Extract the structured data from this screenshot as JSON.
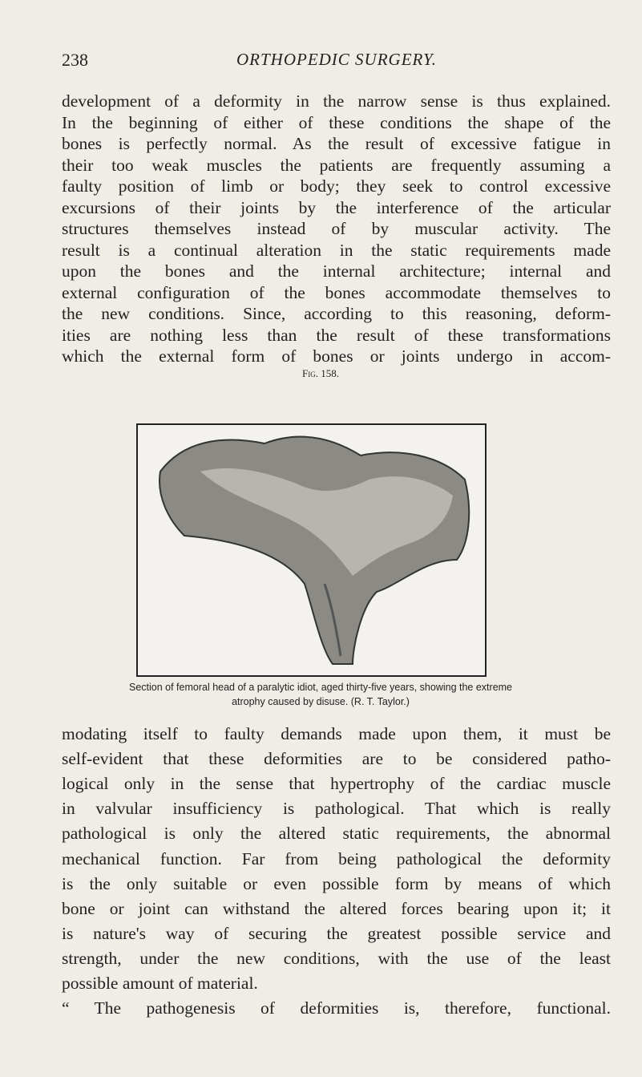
{
  "header": {
    "page_number": "238",
    "running_title": "ORTHOPEDIC SURGERY."
  },
  "paragraphs": [
    {
      "lines": [
        "development of a deformity in the narrow sense is thus explained.",
        "In the beginning of either of these conditions the shape of the",
        "bones is perfectly normal. As the result of excessive fatigue in",
        "their too weak muscles the patients are frequently assuming a",
        "faulty position of limb or body; they seek to control excessive",
        "excursions of their joints by the interference of the articular",
        "structures themselves instead of by muscular activity. The",
        "result is a continual alteration in the static requirements made",
        "upon the bones and the internal architecture; internal and",
        "external configuration of the bones accommodate themselves to",
        "the new conditions. Since, according to this reasoning, deform-",
        "ities are nothing less than the result of these transformations",
        "which the external form of bones or joints undergo in accom-"
      ]
    },
    {
      "lines": [
        "modating itself to faulty demands made upon them, it must be",
        "self-evident that these deformities are to be considered patho-",
        "logical only in the sense that hypertrophy of the cardiac muscle",
        "in valvular insufficiency is pathological. That which is really",
        "pathological is only the altered static requirements, the abnormal",
        "mechanical function. Far from being pathological the deformity",
        "is the only suitable or even possible form by means of which",
        "bone or joint can withstand the altered forces bearing upon it; it",
        "is nature's way of securing the greatest possible service and",
        "strength, under the new conditions, with the use of the least",
        "possible amount of material.",
        "“ The pathogenesis of deformities is, therefore, functional."
      ]
    }
  ],
  "figure": {
    "label": "Fig. 158.",
    "caption_lines": [
      "Section of femoral head of a paralytic idiot, aged thirty-five years, showing the extreme",
      "atrophy caused by disuse. (R. T. Taylor.)"
    ]
  }
}
